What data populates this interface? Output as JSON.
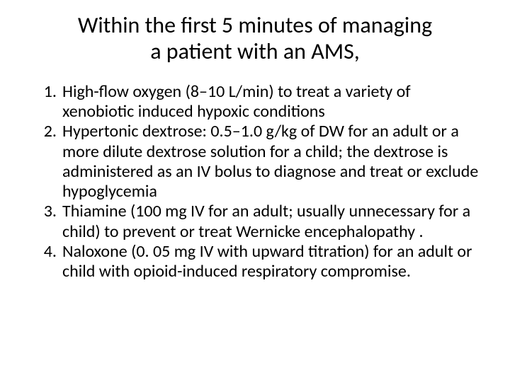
{
  "title": {
    "line1": "Within the first 5 minutes of managing",
    "line2": "a patient with an AMS,",
    "fontsize": 32,
    "color": "#000000"
  },
  "list": {
    "fontsize": 24,
    "color": "#000000",
    "items": [
      {
        "num": "1.",
        "text": "High-flow oxygen (8–10 L/min) to treat a variety of xenobiotic induced hypoxic conditions"
      },
      {
        "num": "2.",
        "text": "Hypertonic dextrose: 0.5–1.0 g/kg of DW for an adult or a more dilute dextrose solution for a child; the dextrose is administered as an IV bolus to diagnose and treat or exclude hypoglycemia"
      },
      {
        "num": "3.",
        "text": "Thiamine (100 mg IV for an adult; usually unnecessary for a child) to prevent or treat Wernicke encephalopathy ."
      },
      {
        "num": "4.",
        "text": "Naloxone (0. 05 mg IV with upward titration) for an adult or child with opioid-induced respiratory compromise."
      }
    ]
  },
  "background_color": "#ffffff"
}
